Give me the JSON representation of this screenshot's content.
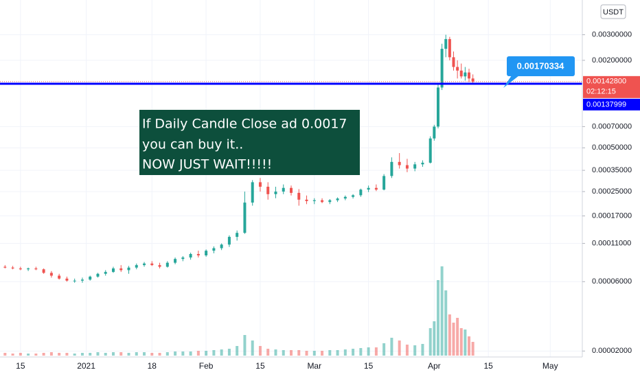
{
  "chart_data": {
    "type": "candlestick",
    "currency": "USDT",
    "yscale": "log",
    "grid": true,
    "up_color": "#26a69a",
    "down_color": "#ef5350",
    "xlim": [
      -5.3,
      145.3
    ],
    "ylim": [
      1.82e-05,
      0.0052
    ],
    "xticks": [
      {
        "value": 0,
        "label": "15"
      },
      {
        "value": 17,
        "label": "2021"
      },
      {
        "value": 34,
        "label": "18"
      },
      {
        "value": 48,
        "label": "Feb"
      },
      {
        "value": 62,
        "label": "15"
      },
      {
        "value": 76,
        "label": "Mar"
      },
      {
        "value": 90,
        "label": "15"
      },
      {
        "value": 107,
        "label": "Apr"
      },
      {
        "value": 121,
        "label": "15"
      },
      {
        "value": 137,
        "label": "May"
      }
    ],
    "yticks": [
      {
        "value": 0.003,
        "label": "0.00300000"
      },
      {
        "value": 0.002,
        "label": "0.00200000"
      },
      {
        "value": 0.0007,
        "label": "0.00070000"
      },
      {
        "value": 0.0005,
        "label": "0.00050000"
      },
      {
        "value": 0.00035,
        "label": "0.00035000"
      },
      {
        "value": 0.00025,
        "label": "0.00025000"
      },
      {
        "value": 0.00017,
        "label": "0.00017000"
      },
      {
        "value": 0.00011,
        "label": "0.00011000"
      },
      {
        "value": 6e-05,
        "label": "0.00006000"
      },
      {
        "value": 2e-05,
        "label": "0.00002000"
      }
    ],
    "x": [
      -4,
      -2,
      0,
      2,
      4,
      6,
      8,
      10,
      12,
      14,
      16,
      18,
      20,
      22,
      24,
      26,
      28,
      30,
      32,
      34,
      36,
      38,
      40,
      42,
      44,
      46,
      48,
      50,
      52,
      54,
      56,
      58,
      60,
      62,
      64,
      66,
      68,
      70,
      72,
      74,
      76,
      78,
      80,
      82,
      84,
      86,
      88,
      90,
      92,
      94,
      96,
      98,
      100,
      102,
      104,
      106,
      107,
      108,
      109,
      110,
      111,
      112,
      113,
      114,
      115,
      116,
      117
    ],
    "open": [
      7.6e-05,
      7.5e-05,
      7.4e-05,
      7.3e-05,
      7.4e-05,
      7.3e-05,
      6.9e-05,
      6.6e-05,
      6.3e-05,
      6.1e-05,
      6.1e-05,
      6.2e-05,
      6.5e-05,
      6.8e-05,
      7e-05,
      7.4e-05,
      7.2e-05,
      7.5e-05,
      7.8e-05,
      8e-05,
      7.8e-05,
      7.6e-05,
      8.1e-05,
      8.6e-05,
      8.8e-05,
      9.3e-05,
      9.1e-05,
      9.8e-05,
      0.000102,
      0.000108,
      0.000122,
      0.00013,
      0.00021,
      0.00029,
      0.00027,
      0.00024,
      0.00025,
      0.000265,
      0.000245,
      0.00022,
      0.000215,
      0.000218,
      0.000212,
      0.000218,
      0.000224,
      0.00023,
      0.000236,
      0.000258,
      0.000265,
      0.000258,
      0.00032,
      0.0004,
      0.00038,
      0.00036,
      0.000385,
      0.000395,
      0.00058,
      0.0007,
      0.0013,
      0.0024,
      0.0028,
      0.0021,
      0.0018,
      0.0017,
      0.00155,
      0.00165,
      0.0015
    ],
    "high": [
      7.8e-05,
      7.7e-05,
      7.6e-05,
      7.5e-05,
      7.6e-05,
      7.4e-05,
      7.1e-05,
      6.8e-05,
      6.5e-05,
      6.3e-05,
      6.4e-05,
      6.6e-05,
      6.9e-05,
      7.2e-05,
      7.6e-05,
      7.8e-05,
      7.7e-05,
      8e-05,
      8.2e-05,
      8.3e-05,
      8.1e-05,
      8.3e-05,
      8.8e-05,
      9e-05,
      9.5e-05,
      9.8e-05,
      0.0001,
      0.000105,
      0.00011,
      0.000125,
      0.000135,
      0.00025,
      0.0003,
      0.00031,
      0.00029,
      0.00027,
      0.00028,
      0.000275,
      0.00026,
      0.000235,
      0.000225,
      0.000225,
      0.000222,
      0.000228,
      0.000235,
      0.00024,
      0.000262,
      0.000275,
      0.00028,
      0.00033,
      0.00043,
      0.00046,
      0.00042,
      0.0004,
      0.00041,
      0.0006,
      0.00072,
      0.0014,
      0.0026,
      0.003,
      0.0029,
      0.0023,
      0.002,
      0.0019,
      0.0018,
      0.00175,
      0.0016
    ],
    "low": [
      7.4e-05,
      7.3e-05,
      7.2e-05,
      7.1e-05,
      7.2e-05,
      6.8e-05,
      6.4e-05,
      6.2e-05,
      6e-05,
      5.9e-05,
      5.9e-05,
      6.1e-05,
      6.4e-05,
      6.6e-05,
      6.9e-05,
      7e-05,
      6.8e-05,
      7.3e-05,
      7.6e-05,
      7.7e-05,
      7.4e-05,
      7.5e-05,
      7.9e-05,
      8.3e-05,
      8.5e-05,
      8.8e-05,
      8.9e-05,
      9.4e-05,
      9.9e-05,
      0.000104,
      0.000115,
      0.000128,
      0.0002,
      0.00025,
      0.00022,
      0.000225,
      0.00024,
      0.000235,
      0.0002,
      0.000205,
      0.000205,
      0.000208,
      0.000205,
      0.000212,
      0.000218,
      0.000224,
      0.00023,
      0.000248,
      0.000252,
      0.000255,
      0.00031,
      0.00036,
      0.00034,
      0.000345,
      0.00037,
      0.00039,
      0.00056,
      0.00068,
      0.00125,
      0.0021,
      0.002,
      0.0017,
      0.0015,
      0.0015,
      0.00145,
      0.00142,
      0.0014
    ],
    "close": [
      7.5e-05,
      7.4e-05,
      7.3e-05,
      7.4e-05,
      7.3e-05,
      6.9e-05,
      6.6e-05,
      6.3e-05,
      6.1e-05,
      6.1e-05,
      6.2e-05,
      6.5e-05,
      6.8e-05,
      7e-05,
      7.4e-05,
      7.2e-05,
      7.5e-05,
      7.8e-05,
      8e-05,
      7.8e-05,
      7.6e-05,
      8.1e-05,
      8.6e-05,
      8.8e-05,
      9.3e-05,
      9.1e-05,
      9.8e-05,
      0.000102,
      0.000108,
      0.000122,
      0.00013,
      0.00021,
      0.00029,
      0.00027,
      0.00024,
      0.00025,
      0.000265,
      0.000245,
      0.00022,
      0.000215,
      0.000218,
      0.000212,
      0.000218,
      0.000224,
      0.00023,
      0.000236,
      0.000258,
      0.000265,
      0.000258,
      0.00032,
      0.0004,
      0.00038,
      0.00036,
      0.000385,
      0.000395,
      0.00058,
      0.0007,
      0.0013,
      0.0024,
      0.0028,
      0.0021,
      0.0018,
      0.0017,
      0.00155,
      0.00165,
      0.0015,
      0.001428
    ],
    "volume": [
      4,
      3,
      4,
      3,
      3,
      4,
      5,
      4,
      4,
      3,
      4,
      4,
      5,
      4,
      5,
      5,
      4,
      5,
      5,
      4,
      4,
      5,
      6,
      6,
      6,
      7,
      7,
      8,
      9,
      10,
      14,
      30,
      22,
      14,
      10,
      9,
      8,
      8,
      8,
      7,
      7,
      7,
      8,
      8,
      9,
      10,
      11,
      12,
      12,
      18,
      26,
      22,
      16,
      15,
      17,
      40,
      50,
      110,
      130,
      95,
      60,
      48,
      55,
      40,
      38,
      28,
      20
    ],
    "last_price": 0.001428,
    "last_price_label": "0.00142800",
    "countdown": "02:12:15",
    "level": 0.00137999,
    "level_label": "0.00137999",
    "level_color": "#0000ff",
    "callout": "0.00170334",
    "annotation": [
      "If Daily Candle Close ad 0.0017",
      "you can buy it..",
      "NOW JUST WAIT!!!!!"
    ]
  }
}
